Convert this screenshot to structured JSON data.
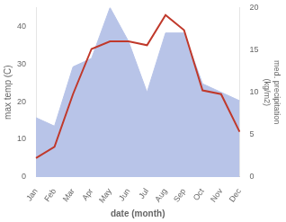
{
  "chart_data": {
    "type": "line",
    "categories": [
      "Jan",
      "Feb",
      "Mar",
      "Apr",
      "May",
      "Jun",
      "Jul",
      "Aug",
      "Sep",
      "Oct",
      "Nov",
      "Dec"
    ],
    "series": [
      {
        "name": "med. precipitation",
        "type": "area",
        "axis": "y2",
        "color": "#b8c4e8",
        "values": [
          7,
          6,
          13,
          14,
          20,
          16,
          10,
          17,
          17,
          11,
          10,
          9
        ]
      },
      {
        "name": "max temp",
        "type": "line",
        "color": "#c0392b",
        "values": [
          5,
          8,
          22,
          34,
          36,
          36,
          35,
          43,
          39,
          23,
          22,
          12
        ]
      }
    ],
    "xlabel": "date (month)",
    "ylabel": "max temp (C)",
    "y2label": "med. precipitation\n(kg/m2)",
    "ylim": [
      0,
      45
    ],
    "yticks": [
      0,
      10,
      20,
      30,
      40
    ],
    "y2lim": [
      0,
      20
    ],
    "y2ticks": [
      0,
      5,
      10,
      15,
      20
    ],
    "grid": false,
    "legend": false
  }
}
